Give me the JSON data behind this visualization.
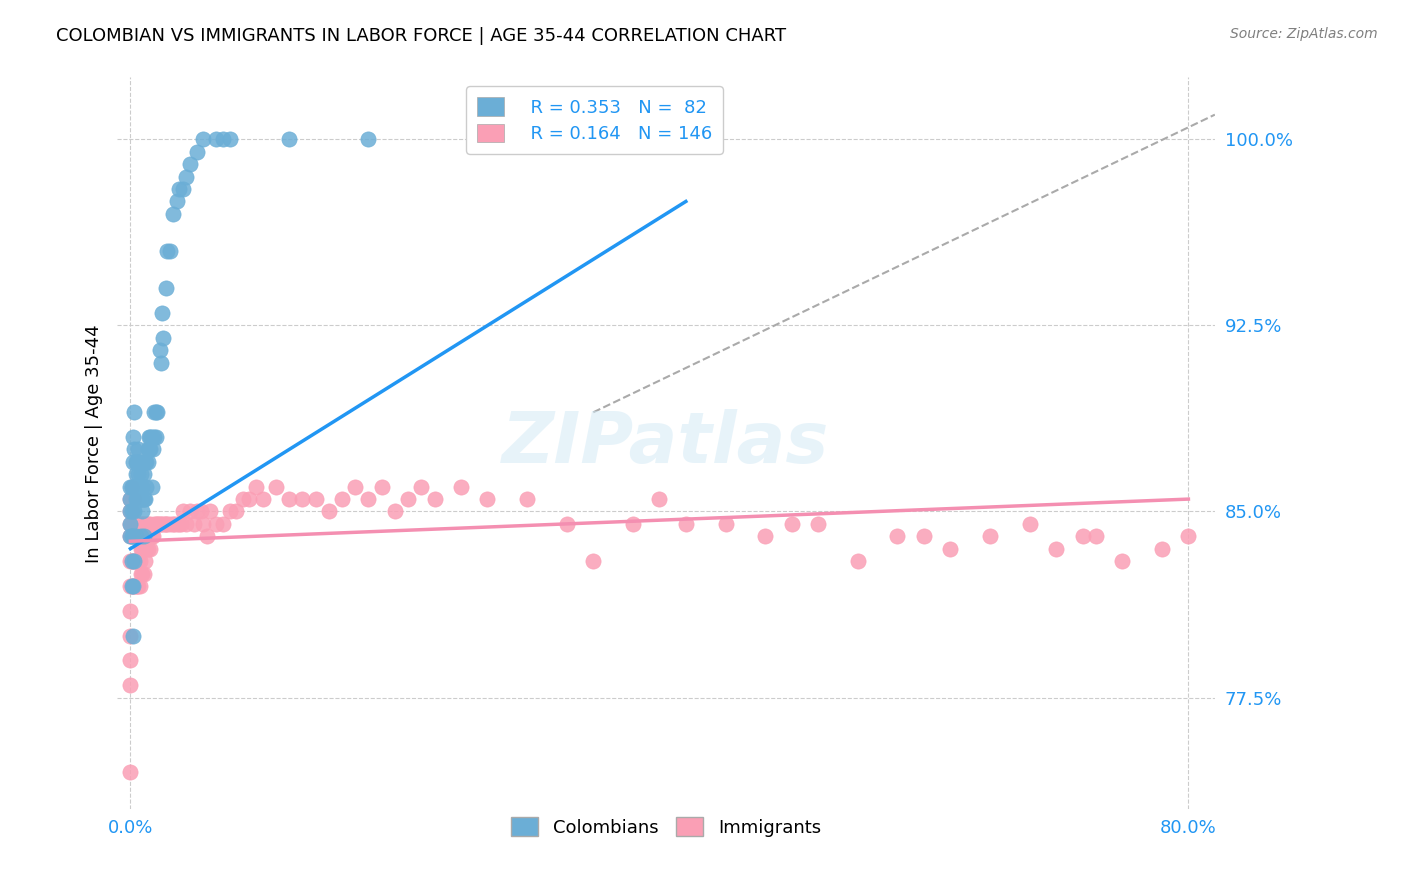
{
  "title": "COLOMBIAN VS IMMIGRANTS IN LABOR FORCE | AGE 35-44 CORRELATION CHART",
  "source": "Source: ZipAtlas.com",
  "xlabel": "",
  "ylabel": "In Labor Force | Age 35-44",
  "x_tick_labels": [
    "0.0%",
    "80.0%"
  ],
  "y_tick_labels": [
    "77.5%",
    "85.0%",
    "92.5%",
    "100.0%"
  ],
  "colombians_R": 0.353,
  "colombians_N": 82,
  "immigrants_R": 0.164,
  "immigrants_N": 146,
  "legend_labels": [
    "Colombians",
    "Immigrants"
  ],
  "blue_color": "#6baed6",
  "pink_color": "#fa9fb5",
  "blue_line_color": "#2196F3",
  "pink_line_color": "#F48FB1",
  "dashed_line_color": "#aaaaaa",
  "watermark": "ZIPatlas",
  "colombians_x": [
    0.0,
    0.0,
    0.0,
    0.0,
    0.0,
    0.001,
    0.001,
    0.001,
    0.001,
    0.001,
    0.002,
    0.002,
    0.002,
    0.002,
    0.002,
    0.002,
    0.003,
    0.003,
    0.003,
    0.003,
    0.003,
    0.004,
    0.004,
    0.004,
    0.004,
    0.005,
    0.005,
    0.005,
    0.006,
    0.006,
    0.006,
    0.006,
    0.007,
    0.007,
    0.007,
    0.008,
    0.008,
    0.008,
    0.009,
    0.009,
    0.009,
    0.01,
    0.01,
    0.01,
    0.011,
    0.011,
    0.012,
    0.012,
    0.013,
    0.013,
    0.014,
    0.014,
    0.015,
    0.015,
    0.016,
    0.016,
    0.017,
    0.018,
    0.018,
    0.019,
    0.019,
    0.02,
    0.022,
    0.023,
    0.024,
    0.025,
    0.027,
    0.028,
    0.03,
    0.032,
    0.035,
    0.037,
    0.04,
    0.042,
    0.045,
    0.05,
    0.055,
    0.065,
    0.07,
    0.075,
    0.12,
    0.18
  ],
  "colombians_y": [
    0.84,
    0.845,
    0.85,
    0.855,
    0.86,
    0.82,
    0.83,
    0.84,
    0.85,
    0.86,
    0.8,
    0.82,
    0.84,
    0.86,
    0.87,
    0.88,
    0.83,
    0.85,
    0.86,
    0.875,
    0.89,
    0.84,
    0.855,
    0.865,
    0.87,
    0.855,
    0.86,
    0.87,
    0.855,
    0.86,
    0.865,
    0.875,
    0.855,
    0.86,
    0.87,
    0.84,
    0.855,
    0.865,
    0.85,
    0.855,
    0.86,
    0.84,
    0.855,
    0.865,
    0.855,
    0.87,
    0.86,
    0.87,
    0.87,
    0.875,
    0.875,
    0.88,
    0.875,
    0.88,
    0.86,
    0.88,
    0.875,
    0.88,
    0.89,
    0.88,
    0.89,
    0.89,
    0.915,
    0.91,
    0.93,
    0.92,
    0.94,
    0.955,
    0.955,
    0.97,
    0.975,
    0.98,
    0.98,
    0.985,
    0.99,
    0.995,
    1.0,
    1.0,
    1.0,
    1.0,
    1.0,
    1.0
  ],
  "immigrants_x": [
    0.0,
    0.0,
    0.0,
    0.0,
    0.0,
    0.0,
    0.0,
    0.0,
    0.0,
    0.0,
    0.0,
    0.001,
    0.001,
    0.001,
    0.001,
    0.001,
    0.001,
    0.001,
    0.001,
    0.002,
    0.002,
    0.002,
    0.002,
    0.002,
    0.003,
    0.003,
    0.003,
    0.003,
    0.003,
    0.004,
    0.004,
    0.004,
    0.004,
    0.005,
    0.005,
    0.005,
    0.006,
    0.006,
    0.006,
    0.006,
    0.007,
    0.007,
    0.007,
    0.008,
    0.008,
    0.008,
    0.009,
    0.009,
    0.009,
    0.01,
    0.01,
    0.01,
    0.011,
    0.011,
    0.012,
    0.012,
    0.013,
    0.013,
    0.014,
    0.015,
    0.015,
    0.016,
    0.017,
    0.018,
    0.019,
    0.02,
    0.021,
    0.022,
    0.023,
    0.025,
    0.026,
    0.027,
    0.028,
    0.03,
    0.032,
    0.033,
    0.035,
    0.037,
    0.038,
    0.04,
    0.042,
    0.045,
    0.048,
    0.05,
    0.053,
    0.055,
    0.058,
    0.06,
    0.065,
    0.07,
    0.075,
    0.08,
    0.085,
    0.09,
    0.095,
    0.1,
    0.11,
    0.12,
    0.13,
    0.14,
    0.15,
    0.16,
    0.17,
    0.18,
    0.19,
    0.2,
    0.21,
    0.22,
    0.23,
    0.25,
    0.27,
    0.3,
    0.33,
    0.35,
    0.38,
    0.4,
    0.42,
    0.45,
    0.48,
    0.5,
    0.52,
    0.55,
    0.58,
    0.6,
    0.62,
    0.65,
    0.68,
    0.7,
    0.72,
    0.73,
    0.75,
    0.78,
    0.8
  ],
  "immigrants_y": [
    0.78,
    0.79,
    0.8,
    0.81,
    0.82,
    0.83,
    0.84,
    0.845,
    0.85,
    0.855,
    0.745,
    0.82,
    0.83,
    0.84,
    0.845,
    0.85,
    0.855,
    0.86,
    0.83,
    0.82,
    0.83,
    0.84,
    0.845,
    0.855,
    0.82,
    0.83,
    0.84,
    0.845,
    0.855,
    0.82,
    0.83,
    0.84,
    0.845,
    0.82,
    0.83,
    0.84,
    0.82,
    0.83,
    0.84,
    0.845,
    0.82,
    0.83,
    0.84,
    0.825,
    0.835,
    0.845,
    0.825,
    0.835,
    0.845,
    0.825,
    0.835,
    0.845,
    0.83,
    0.84,
    0.835,
    0.845,
    0.835,
    0.845,
    0.84,
    0.835,
    0.845,
    0.84,
    0.84,
    0.845,
    0.845,
    0.845,
    0.845,
    0.845,
    0.845,
    0.845,
    0.845,
    0.845,
    0.845,
    0.845,
    0.845,
    0.845,
    0.845,
    0.845,
    0.845,
    0.85,
    0.845,
    0.85,
    0.845,
    0.85,
    0.85,
    0.845,
    0.84,
    0.85,
    0.845,
    0.845,
    0.85,
    0.85,
    0.855,
    0.855,
    0.86,
    0.855,
    0.86,
    0.855,
    0.855,
    0.855,
    0.85,
    0.855,
    0.86,
    0.855,
    0.86,
    0.85,
    0.855,
    0.86,
    0.855,
    0.86,
    0.855,
    0.855,
    0.845,
    0.83,
    0.845,
    0.855,
    0.845,
    0.845,
    0.84,
    0.845,
    0.845,
    0.83,
    0.84,
    0.84,
    0.835,
    0.84,
    0.845,
    0.835,
    0.84,
    0.84,
    0.83,
    0.835,
    0.84
  ],
  "xlim": [
    -0.01,
    0.82
  ],
  "ylim": [
    0.73,
    1.025
  ],
  "y_ticks": [
    0.775,
    0.85,
    0.925,
    1.0
  ],
  "x_ticks": [
    0.0,
    0.8
  ],
  "blue_line_x": [
    0.0,
    0.42
  ],
  "blue_line_y": [
    0.835,
    0.975
  ],
  "pink_line_x": [
    0.0,
    0.8
  ],
  "pink_line_y": [
    0.838,
    0.855
  ],
  "dashed_line_x": [
    0.35,
    0.82
  ],
  "dashed_line_y": [
    0.89,
    1.01
  ]
}
